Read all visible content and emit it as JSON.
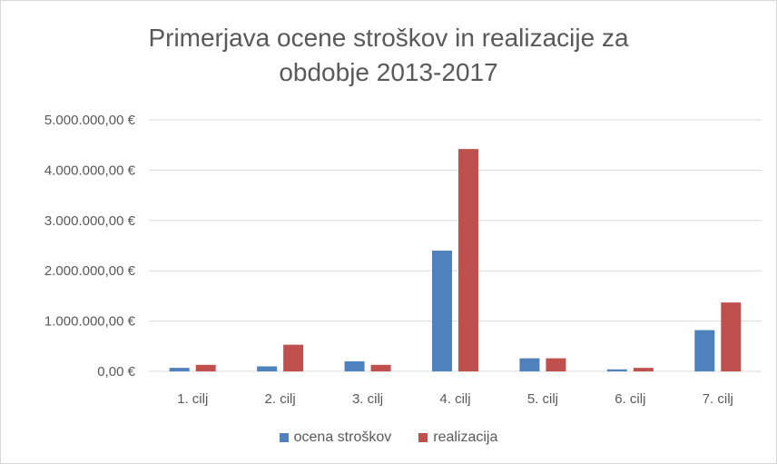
{
  "chart_data": {
    "type": "bar",
    "title_lines": [
      "Primerjava ocene stroškov in realizacije za",
      "obdobje 2013-2017"
    ],
    "xlabel": "",
    "ylabel": "",
    "categories": [
      "1. cilj",
      "2. cilj",
      "3. cilj",
      "4. cilj",
      "5. cilj",
      "6. cilj",
      "7. cilj"
    ],
    "series": [
      {
        "name": "ocena stroškov",
        "color": "#4f81bd",
        "values": [
          70000,
          100000,
          200000,
          2400000,
          260000,
          40000,
          820000
        ]
      },
      {
        "name": "realizacija",
        "color": "#c0504d",
        "values": [
          130000,
          530000,
          130000,
          4420000,
          260000,
          70000,
          1370000
        ]
      }
    ],
    "ylim": [
      0,
      5000000
    ],
    "yticks": [
      0,
      1000000,
      2000000,
      3000000,
      4000000,
      5000000
    ],
    "ytick_labels": [
      "0,00 €",
      "1.000.000,00 €",
      "2.000.000,00 €",
      "3.000.000,00 €",
      "4.000.000,00 €",
      "5.000.000,00 €"
    ],
    "grid": true,
    "legend_position": "bottom",
    "gridline_color": "#d9d9d9",
    "text_color": "#595959"
  }
}
